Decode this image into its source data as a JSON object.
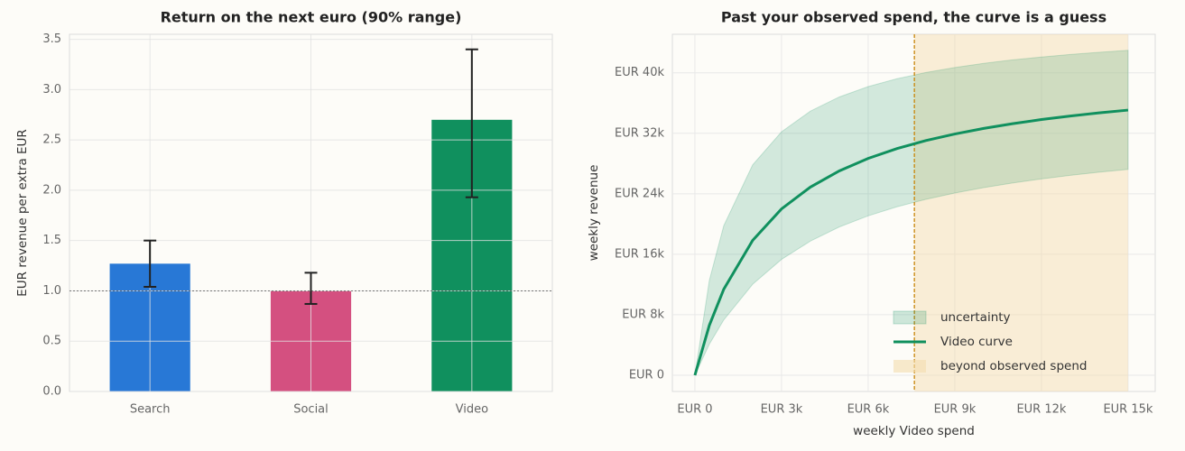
{
  "chart_data": [
    {
      "type": "bar",
      "title": "Return on the next euro (90% range)",
      "y_label": "EUR revenue per extra EUR",
      "categories": [
        "Search",
        "Social",
        "Video"
      ],
      "values": [
        1.27,
        1.0,
        2.7
      ],
      "error_low": [
        1.04,
        0.87,
        1.93
      ],
      "error_high": [
        1.5,
        1.18,
        3.4
      ],
      "colors": [
        "#2878d6",
        "#d45080",
        "#10905e"
      ],
      "reference_line": 1.0,
      "ylim": [
        0,
        3.55
      ],
      "yticks": [
        {
          "value": 0,
          "label": "0.0"
        },
        0.5,
        {
          "value": 1,
          "label": "1.0"
        },
        1.5,
        {
          "value": 2,
          "label": "2.0"
        },
        2.5,
        {
          "value": 3,
          "label": "3.0"
        },
        3.5
      ],
      "grid": true
    },
    {
      "type": "line",
      "title": "Past your observed spend, the curve is a guess",
      "x_label": "weekly Video spend",
      "y_label": "weekly revenue",
      "x": [
        0,
        500,
        1000,
        2000,
        3000,
        4000,
        5000,
        6000,
        7000,
        8000,
        9000,
        10000,
        11000,
        12000,
        13000,
        14000,
        15000
      ],
      "series": [
        {
          "name": "Video curve",
          "color": "#10905e",
          "values": [
            0,
            6600,
            11380,
            17840,
            22000,
            24890,
            27030,
            28680,
            29980,
            31040,
            31910,
            32650,
            33270,
            33820,
            34290,
            34710,
            35070
          ]
        }
      ],
      "band": {
        "name": "uncertainty",
        "color": "#10905e",
        "lower": [
          0,
          4100,
          7320,
          12030,
          15320,
          17740,
          19610,
          21080,
          22280,
          23270,
          24100,
          24820,
          25430,
          25970,
          26440,
          26860,
          27230
        ],
        "upper": [
          0,
          12540,
          19790,
          27830,
          32200,
          34930,
          36810,
          38180,
          39220,
          40040,
          40700,
          41250,
          41710,
          42090,
          42430,
          42720,
          42980
        ]
      },
      "shade": {
        "name": "beyond observed spend",
        "color": "#f3dcae",
        "from": 7600
      },
      "xlim": [
        -780,
        15940
      ],
      "xticks": [
        {
          "value": 0,
          "label": "EUR 0"
        },
        {
          "value": 3000,
          "label": "EUR 3k"
        },
        {
          "value": 6000,
          "label": "EUR 6k"
        },
        {
          "value": 9000,
          "label": "EUR 9k"
        },
        {
          "value": 12000,
          "label": "EUR 12k"
        },
        {
          "value": 15000,
          "label": "EUR 15k"
        }
      ],
      "ylim": [
        -2150,
        45100
      ],
      "yticks": [
        {
          "value": 0,
          "label": "EUR 0"
        },
        {
          "value": 8000,
          "label": "EUR 8k"
        },
        {
          "value": 16000,
          "label": "EUR 16k"
        },
        {
          "value": 24000,
          "label": "EUR 24k"
        },
        {
          "value": 32000,
          "label": "EUR 32k"
        },
        {
          "value": 40000,
          "label": "EUR 40k"
        }
      ],
      "grid": true,
      "legend": "lower right"
    }
  ]
}
